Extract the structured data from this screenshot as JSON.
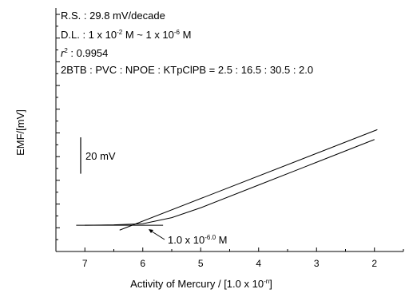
{
  "chart_data": {
    "type": "line",
    "xlabel": {
      "main": "Activity of Mercury / [1.0 x 10",
      "sup": "-n",
      "tail": "]"
    },
    "ylabel": "EMF/[mV]",
    "xlim": [
      7.5,
      1.5
    ],
    "x_reversed": true,
    "x_ticks": [
      7,
      6,
      5,
      4,
      3,
      2
    ],
    "x_tick_labels": [
      "7",
      "6",
      "5",
      "4",
      "3",
      "2"
    ],
    "y_tick_labels_shown": false,
    "y_minor_tick_count": 20,
    "grid": false,
    "annotations": {
      "rs": "R.S. : 29.8 mV/decade",
      "dl": {
        "p1": "D.L. : 1 x 10",
        "s1": "-2",
        "p2": " M ~ 1 x 10",
        "s2": "-6",
        "p3": " M"
      },
      "r2": {
        "base": "r",
        "sup": "2",
        "rest": " : 0.9954"
      },
      "composition": "2BTB : PVC : NPOE : KTpClPB = 2.5 : 16.5 : 30.5 : 2.0",
      "scale_bar": "20 mV",
      "detection_limit": {
        "p1": "1.0 x 10",
        "s1": "-6.0",
        "p2": " M"
      }
    },
    "series": [
      {
        "values_x": [
          7.0,
          6.5,
          6.0,
          5.5,
          5.0,
          4.0,
          3.0,
          2.0
        ],
        "values_y_mV": [
          2,
          2.5,
          4,
          12,
          25,
          55,
          85,
          115
        ]
      }
    ],
    "fit_line": {
      "slope_mV_per_decade": 29.8,
      "x": [
        6.4,
        1.95
      ],
      "y_mV": [
        -4.5,
        128.0
      ]
    },
    "baseline_extension": {
      "x": [
        7.15,
        5.65
      ],
      "y_mV": [
        2.0,
        2.0
      ]
    }
  }
}
